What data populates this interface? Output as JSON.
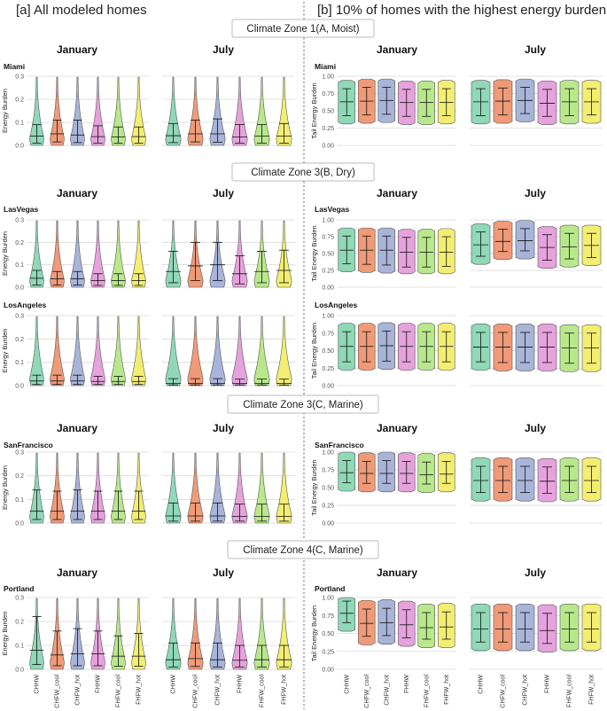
{
  "columns": {
    "left_title": "[a] All modeled homes",
    "right_title": "[b] 10% of homes with the highest energy burden"
  },
  "zones": [
    "Climate Zone 1(A, Moist)",
    "Climate Zone 3(B, Dry)",
    "Climate Zone 3(C, Marine)",
    "Climate Zone 4(C, Marine)"
  ],
  "months": [
    "January",
    "July"
  ],
  "categories": [
    "CHHW",
    "CHFW_cool",
    "CHFW_hot",
    "FHHW",
    "FHFW_cool",
    "FHFW_hot"
  ],
  "colors": [
    "#8fd8b8",
    "#f09a78",
    "#a8b4d8",
    "#e6a2dc",
    "#b9e88c",
    "#f3ee72"
  ],
  "axis_titles": {
    "left": "Energy Burden",
    "right": "Tail Energy Burden"
  },
  "chart_data": {
    "type": "violin",
    "left_ylim": [
      0,
      0.3
    ],
    "left_ticks": [
      "0.0",
      "0.1",
      "0.2",
      "0.3"
    ],
    "right_ylim": [
      0,
      1.0
    ],
    "right_ticks": [
      "0.00",
      "0.25",
      "0.50",
      "0.75",
      "1.00"
    ],
    "cities": [
      {
        "name": "Miami",
        "zone": 0,
        "left": {
          "January": [
            {
              "med": 0.04,
              "lo": 0.01,
              "hi": 0.09
            },
            {
              "med": 0.05,
              "lo": 0.015,
              "hi": 0.11
            },
            {
              "med": 0.045,
              "lo": 0.012,
              "hi": 0.11
            },
            {
              "med": 0.038,
              "lo": 0.01,
              "hi": 0.085
            },
            {
              "med": 0.037,
              "lo": 0.01,
              "hi": 0.08
            },
            {
              "med": 0.038,
              "lo": 0.01,
              "hi": 0.08
            }
          ],
          "July": [
            {
              "med": 0.042,
              "lo": 0.012,
              "hi": 0.095
            },
            {
              "med": 0.05,
              "lo": 0.015,
              "hi": 0.11
            },
            {
              "med": 0.05,
              "lo": 0.014,
              "hi": 0.115
            },
            {
              "med": 0.036,
              "lo": 0.01,
              "hi": 0.09
            },
            {
              "med": 0.04,
              "lo": 0.01,
              "hi": 0.09
            },
            {
              "med": 0.04,
              "lo": 0.01,
              "hi": 0.095
            }
          ]
        },
        "right": {
          "January": [
            {
              "med": 0.63,
              "lo": 0.43,
              "hi": 0.82
            },
            {
              "med": 0.64,
              "lo": 0.44,
              "hi": 0.84
            },
            {
              "med": 0.65,
              "lo": 0.45,
              "hi": 0.84
            },
            {
              "med": 0.62,
              "lo": 0.42,
              "hi": 0.81
            },
            {
              "med": 0.62,
              "lo": 0.42,
              "hi": 0.81
            },
            {
              "med": 0.62,
              "lo": 0.43,
              "hi": 0.82
            }
          ],
          "July": [
            {
              "med": 0.63,
              "lo": 0.43,
              "hi": 0.82
            },
            {
              "med": 0.64,
              "lo": 0.44,
              "hi": 0.83
            },
            {
              "med": 0.65,
              "lo": 0.46,
              "hi": 0.84
            },
            {
              "med": 0.61,
              "lo": 0.42,
              "hi": 0.81
            },
            {
              "med": 0.63,
              "lo": 0.43,
              "hi": 0.82
            },
            {
              "med": 0.63,
              "lo": 0.44,
              "hi": 0.82
            }
          ]
        }
      },
      {
        "name": "LasVegas",
        "zone": 1,
        "left": {
          "January": [
            {
              "med": 0.04,
              "lo": 0.01,
              "hi": 0.075
            },
            {
              "med": 0.038,
              "lo": 0.01,
              "hi": 0.07
            },
            {
              "med": 0.038,
              "lo": 0.01,
              "hi": 0.07
            },
            {
              "med": 0.03,
              "lo": 0.008,
              "hi": 0.06
            },
            {
              "med": 0.03,
              "lo": 0.008,
              "hi": 0.06
            },
            {
              "med": 0.03,
              "lo": 0.008,
              "hi": 0.06
            }
          ],
          "July": [
            {
              "med": 0.07,
              "lo": 0.02,
              "hi": 0.16
            },
            {
              "med": 0.095,
              "lo": 0.03,
              "hi": 0.2
            },
            {
              "med": 0.1,
              "lo": 0.03,
              "hi": 0.2
            },
            {
              "med": 0.06,
              "lo": 0.015,
              "hi": 0.14
            },
            {
              "med": 0.07,
              "lo": 0.02,
              "hi": 0.16
            },
            {
              "med": 0.075,
              "lo": 0.02,
              "hi": 0.165
            }
          ]
        },
        "right": {
          "January": [
            {
              "med": 0.55,
              "lo": 0.35,
              "hi": 0.76
            },
            {
              "med": 0.55,
              "lo": 0.34,
              "hi": 0.76
            },
            {
              "med": 0.55,
              "lo": 0.33,
              "hi": 0.76
            },
            {
              "med": 0.52,
              "lo": 0.3,
              "hi": 0.74
            },
            {
              "med": 0.52,
              "lo": 0.3,
              "hi": 0.74
            },
            {
              "med": 0.52,
              "lo": 0.31,
              "hi": 0.75
            }
          ],
          "July": [
            {
              "med": 0.63,
              "lo": 0.46,
              "hi": 0.82
            },
            {
              "med": 0.68,
              "lo": 0.53,
              "hi": 0.86
            },
            {
              "med": 0.69,
              "lo": 0.54,
              "hi": 0.87
            },
            {
              "med": 0.59,
              "lo": 0.4,
              "hi": 0.78
            },
            {
              "med": 0.6,
              "lo": 0.42,
              "hi": 0.8
            },
            {
              "med": 0.62,
              "lo": 0.44,
              "hi": 0.8
            }
          ]
        }
      },
      {
        "name": "LosAngeles",
        "zone": 1,
        "left": {
          "January": [
            {
              "med": 0.02,
              "lo": 0.005,
              "hi": 0.045
            },
            {
              "med": 0.02,
              "lo": 0.005,
              "hi": 0.045
            },
            {
              "med": 0.02,
              "lo": 0.005,
              "hi": 0.045
            },
            {
              "med": 0.018,
              "lo": 0.005,
              "hi": 0.04
            },
            {
              "med": 0.018,
              "lo": 0.005,
              "hi": 0.04
            },
            {
              "med": 0.018,
              "lo": 0.005,
              "hi": 0.04
            }
          ],
          "July": [
            {
              "med": 0.01,
              "lo": 0.003,
              "hi": 0.03
            },
            {
              "med": 0.01,
              "lo": 0.003,
              "hi": 0.03
            },
            {
              "med": 0.01,
              "lo": 0.003,
              "hi": 0.03
            },
            {
              "med": 0.009,
              "lo": 0.003,
              "hi": 0.028
            },
            {
              "med": 0.009,
              "lo": 0.003,
              "hi": 0.028
            },
            {
              "med": 0.009,
              "lo": 0.003,
              "hi": 0.028
            }
          ]
        },
        "right": {
          "January": [
            {
              "med": 0.56,
              "lo": 0.34,
              "hi": 0.77
            },
            {
              "med": 0.56,
              "lo": 0.34,
              "hi": 0.77
            },
            {
              "med": 0.57,
              "lo": 0.35,
              "hi": 0.78
            },
            {
              "med": 0.56,
              "lo": 0.34,
              "hi": 0.77
            },
            {
              "med": 0.56,
              "lo": 0.34,
              "hi": 0.77
            },
            {
              "med": 0.56,
              "lo": 0.34,
              "hi": 0.77
            }
          ],
          "July": [
            {
              "med": 0.55,
              "lo": 0.34,
              "hi": 0.76
            },
            {
              "med": 0.55,
              "lo": 0.33,
              "hi": 0.76
            },
            {
              "med": 0.55,
              "lo": 0.33,
              "hi": 0.76
            },
            {
              "med": 0.55,
              "lo": 0.33,
              "hi": 0.76
            },
            {
              "med": 0.54,
              "lo": 0.32,
              "hi": 0.75
            },
            {
              "med": 0.54,
              "lo": 0.32,
              "hi": 0.75
            }
          ]
        }
      },
      {
        "name": "SanFrancisco",
        "zone": 2,
        "left": {
          "January": [
            {
              "med": 0.05,
              "lo": 0.015,
              "hi": 0.14
            },
            {
              "med": 0.05,
              "lo": 0.015,
              "hi": 0.135
            },
            {
              "med": 0.05,
              "lo": 0.015,
              "hi": 0.14
            },
            {
              "med": 0.05,
              "lo": 0.015,
              "hi": 0.135
            },
            {
              "med": 0.05,
              "lo": 0.015,
              "hi": 0.135
            },
            {
              "med": 0.05,
              "lo": 0.015,
              "hi": 0.135
            }
          ],
          "July": [
            {
              "med": 0.03,
              "lo": 0.008,
              "hi": 0.085
            },
            {
              "med": 0.03,
              "lo": 0.008,
              "hi": 0.085
            },
            {
              "med": 0.03,
              "lo": 0.008,
              "hi": 0.085
            },
            {
              "med": 0.028,
              "lo": 0.008,
              "hi": 0.08
            },
            {
              "med": 0.028,
              "lo": 0.008,
              "hi": 0.08
            },
            {
              "med": 0.028,
              "lo": 0.008,
              "hi": 0.08
            }
          ]
        },
        "right": {
          "January": [
            {
              "med": 0.71,
              "lo": 0.57,
              "hi": 0.88
            },
            {
              "med": 0.7,
              "lo": 0.56,
              "hi": 0.87
            },
            {
              "med": 0.7,
              "lo": 0.56,
              "hi": 0.88
            },
            {
              "med": 0.7,
              "lo": 0.56,
              "hi": 0.87
            },
            {
              "med": 0.68,
              "lo": 0.55,
              "hi": 0.86
            },
            {
              "med": 0.69,
              "lo": 0.56,
              "hi": 0.87
            }
          ],
          "July": [
            {
              "med": 0.6,
              "lo": 0.43,
              "hi": 0.8
            },
            {
              "med": 0.6,
              "lo": 0.43,
              "hi": 0.8
            },
            {
              "med": 0.6,
              "lo": 0.43,
              "hi": 0.8
            },
            {
              "med": 0.59,
              "lo": 0.42,
              "hi": 0.79
            },
            {
              "med": 0.6,
              "lo": 0.43,
              "hi": 0.8
            },
            {
              "med": 0.6,
              "lo": 0.43,
              "hi": 0.8
            }
          ]
        }
      },
      {
        "name": "Portland",
        "zone": 3,
        "left": {
          "January": [
            {
              "med": 0.08,
              "lo": 0.02,
              "hi": 0.22
            },
            {
              "med": 0.06,
              "lo": 0.015,
              "hi": 0.16
            },
            {
              "med": 0.065,
              "lo": 0.015,
              "hi": 0.17
            },
            {
              "med": 0.065,
              "lo": 0.015,
              "hi": 0.16
            },
            {
              "med": 0.055,
              "lo": 0.013,
              "hi": 0.14
            },
            {
              "med": 0.055,
              "lo": 0.013,
              "hi": 0.15
            }
          ],
          "July": [
            {
              "med": 0.04,
              "lo": 0.01,
              "hi": 0.11
            },
            {
              "med": 0.045,
              "lo": 0.012,
              "hi": 0.11
            },
            {
              "med": 0.04,
              "lo": 0.01,
              "hi": 0.11
            },
            {
              "med": 0.038,
              "lo": 0.01,
              "hi": 0.1
            },
            {
              "med": 0.04,
              "lo": 0.01,
              "hi": 0.1
            },
            {
              "med": 0.04,
              "lo": 0.01,
              "hi": 0.1
            }
          ]
        },
        "right": {
          "January": [
            {
              "med": 0.78,
              "lo": 0.65,
              "hi": 0.95
            },
            {
              "med": 0.64,
              "lo": 0.46,
              "hi": 0.84
            },
            {
              "med": 0.65,
              "lo": 0.47,
              "hi": 0.85
            },
            {
              "med": 0.62,
              "lo": 0.44,
              "hi": 0.83
            },
            {
              "med": 0.58,
              "lo": 0.42,
              "hi": 0.79
            },
            {
              "med": 0.59,
              "lo": 0.42,
              "hi": 0.8
            }
          ],
          "July": [
            {
              "med": 0.56,
              "lo": 0.38,
              "hi": 0.79
            },
            {
              "med": 0.56,
              "lo": 0.38,
              "hi": 0.79
            },
            {
              "med": 0.56,
              "lo": 0.38,
              "hi": 0.79
            },
            {
              "med": 0.54,
              "lo": 0.36,
              "hi": 0.78
            },
            {
              "med": 0.56,
              "lo": 0.38,
              "hi": 0.79
            },
            {
              "med": 0.56,
              "lo": 0.38,
              "hi": 0.79
            }
          ]
        }
      }
    ]
  }
}
